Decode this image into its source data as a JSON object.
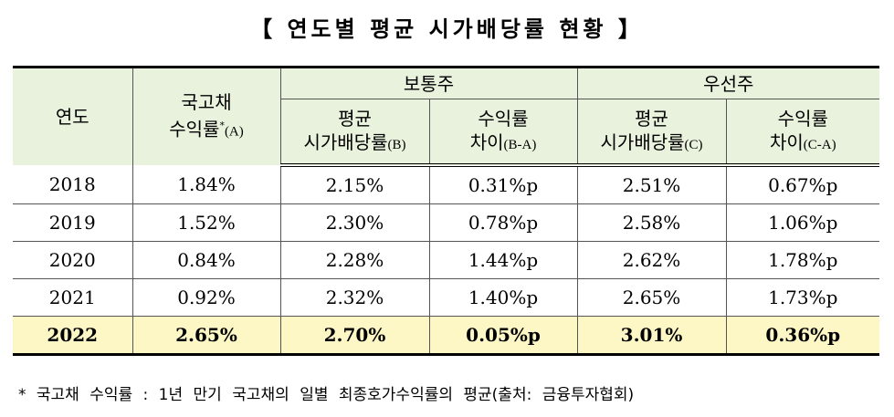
{
  "title": "【 연도별 평균 시가배당률 현황 】",
  "headers": {
    "year": "연도",
    "bond_line1": "국고채",
    "bond_line2": "수익률",
    "bond_mark": "*",
    "bond_suffix": "(A)",
    "common": "보통주",
    "preferred": "우선주",
    "avg_line1": "평균",
    "avg_line2": "시가배당률",
    "avg_b": "(B)",
    "avg_c": "(C)",
    "diff_line1": "수익률",
    "diff_line2": "차이",
    "diff_b": "(B-A)",
    "diff_c": "(C-A)"
  },
  "rows": [
    [
      "2018",
      "1.84%",
      "2.15%",
      "0.31%p",
      "2.51%",
      "0.67%p"
    ],
    [
      "2019",
      "1.52%",
      "2.30%",
      "0.78%p",
      "2.58%",
      "1.06%p"
    ],
    [
      "2020",
      "0.84%",
      "2.28%",
      "1.44%p",
      "2.62%",
      "1.78%p"
    ],
    [
      "2021",
      "0.92%",
      "2.32%",
      "1.40%p",
      "2.65%",
      "1.73%p"
    ],
    [
      "2022",
      "2.65%",
      "2.70%",
      "0.05%p",
      "3.01%",
      "0.36%p"
    ]
  ],
  "highlight_row": "2022",
  "colors": {
    "header_bg": "#e8f2dd",
    "highlight_bg": "#fcf7c4"
  },
  "footnote": "* 국고채 수익률 : 1년 만기 국고채의 일별 최종호가수익률의 평균(출처: 금융투자협회)"
}
